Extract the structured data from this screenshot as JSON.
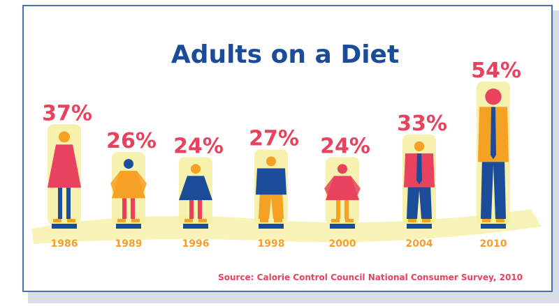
{
  "chart_data": {
    "type": "bar",
    "title": "Adults on a Diet",
    "categories": [
      "1986",
      "1989",
      "1996",
      "1998",
      "2000",
      "2004",
      "2010"
    ],
    "values": [
      37,
      26,
      24,
      27,
      24,
      33,
      54
    ],
    "value_labels": [
      "37%",
      "26%",
      "24%",
      "27%",
      "24%",
      "33%",
      "54%"
    ],
    "unit": "%",
    "xlabel": "",
    "ylabel": "",
    "ylim": [
      0,
      60
    ],
    "grid": false,
    "legend": "none",
    "source": "Source: Calorie Control Council National Consumer Survey, 2010",
    "figure_style": [
      "dress",
      "dress-cape",
      "dress",
      "suit",
      "dress-cape",
      "suit",
      "suit"
    ]
  },
  "colors": {
    "title": "#1a4c9a",
    "value_label": "#e8425e",
    "year_label": "#f0a030",
    "source": "#e8425e",
    "frame_border": "#4a6fb0",
    "highlight": "#f5efa0",
    "pink": "#e8425e",
    "orange": "#f5a123",
    "blue": "#1a4c9a"
  }
}
